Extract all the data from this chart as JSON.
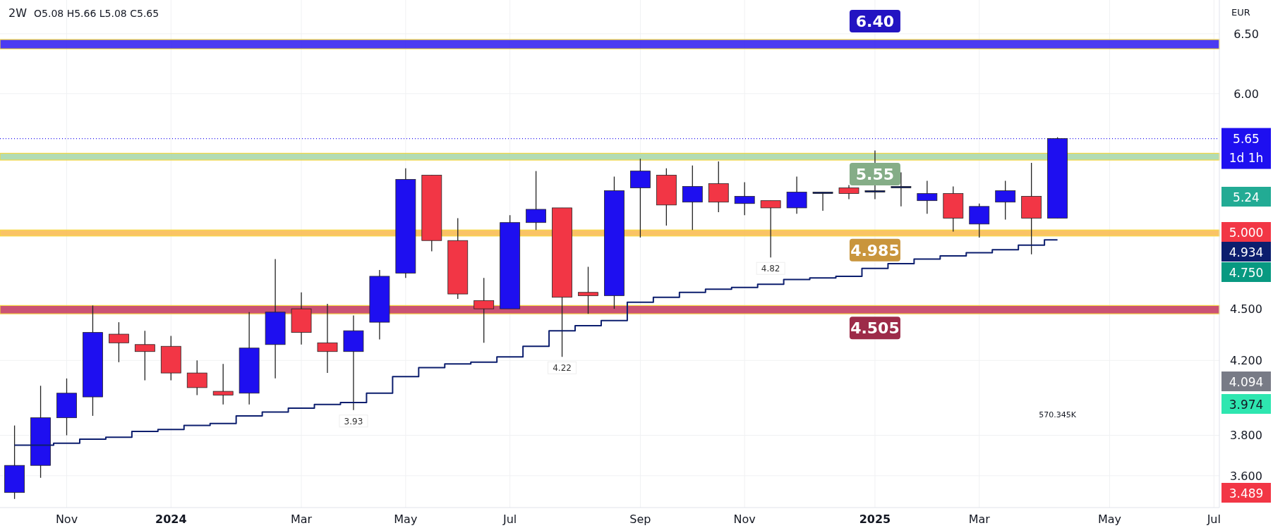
{
  "chart_data": {
    "type": "candlestick",
    "title": "2W",
    "categories": [
      null,
      null,
      "Nov",
      null,
      null,
      null,
      "2024",
      null,
      null,
      null,
      null,
      "Mar",
      null,
      null,
      null,
      "May",
      null,
      null,
      null,
      "Jul",
      null,
      null,
      null,
      null,
      "Sep",
      null,
      null,
      null,
      "Nov",
      null,
      null,
      null,
      null,
      "2025",
      null,
      null,
      null,
      "Mar",
      null,
      null,
      null,
      null,
      "May",
      null,
      null,
      null,
      "Jul"
    ],
    "ohlc": [
      [
        3.52,
        3.85,
        3.49,
        3.65
      ],
      [
        3.65,
        4.06,
        3.59,
        3.89
      ],
      [
        3.89,
        4.1,
        3.8,
        4.02
      ],
      [
        4.0,
        4.52,
        3.9,
        4.36
      ],
      [
        4.35,
        4.42,
        4.19,
        4.3
      ],
      [
        4.29,
        4.37,
        4.09,
        4.25
      ],
      [
        4.28,
        4.34,
        4.09,
        4.13
      ],
      [
        4.13,
        4.2,
        4.01,
        4.05
      ],
      [
        4.03,
        4.18,
        3.96,
        4.01
      ],
      [
        4.02,
        4.48,
        3.96,
        4.27
      ],
      [
        4.29,
        4.81,
        4.1,
        4.48
      ],
      [
        4.5,
        4.6,
        4.29,
        4.36
      ],
      [
        4.3,
        4.53,
        4.13,
        4.25
      ],
      [
        4.25,
        4.46,
        3.93,
        4.37
      ],
      [
        4.42,
        4.74,
        4.32,
        4.7
      ],
      [
        4.72,
        5.43,
        4.69,
        5.35
      ],
      [
        5.38,
        5.38,
        4.86,
        4.93
      ],
      [
        4.93,
        5.08,
        4.56,
        4.59
      ],
      [
        4.55,
        4.69,
        4.3,
        4.5
      ],
      [
        4.5,
        5.1,
        4.5,
        5.05
      ],
      [
        5.05,
        5.41,
        5.0,
        5.14
      ],
      [
        5.15,
        5.15,
        4.22,
        4.57
      ],
      [
        4.6,
        4.76,
        4.47,
        4.58
      ],
      [
        4.58,
        5.37,
        4.5,
        5.27
      ],
      [
        5.29,
        5.5,
        4.95,
        5.41
      ],
      [
        5.38,
        5.43,
        5.03,
        5.17
      ],
      [
        5.19,
        5.45,
        5.0,
        5.3
      ],
      [
        5.32,
        5.48,
        5.12,
        5.19
      ],
      [
        5.18,
        5.33,
        5.1,
        5.23
      ],
      [
        5.2,
        5.2,
        4.82,
        5.15
      ],
      [
        5.15,
        5.37,
        5.11,
        5.26
      ],
      [
        5.26,
        5.26,
        5.13,
        5.26
      ],
      [
        5.29,
        5.31,
        5.21,
        5.25
      ],
      [
        5.27,
        5.56,
        5.21,
        5.27
      ],
      [
        5.3,
        5.4,
        5.16,
        5.3
      ],
      [
        5.2,
        5.34,
        5.11,
        5.25
      ],
      [
        5.25,
        5.3,
        4.99,
        5.08
      ],
      [
        5.04,
        5.18,
        4.95,
        5.16
      ],
      [
        5.19,
        5.34,
        5.07,
        5.27
      ],
      [
        5.23,
        5.47,
        4.84,
        5.08
      ],
      [
        5.08,
        5.66,
        5.08,
        5.65
      ],
      null,
      null,
      null,
      null,
      null,
      null
    ],
    "colors": [
      "#1e0ff0",
      "#1e0ff0",
      "#1e0ff0",
      "#1e0ff0",
      "#f23645",
      "#f23645",
      "#f23645",
      "#f23645",
      "#f23645",
      "#1e0ff0",
      "#1e0ff0",
      "#f23645",
      "#f23645",
      "#1e0ff0",
      "#1e0ff0",
      "#1e0ff0",
      "#f23645",
      "#f23645",
      "#f23645",
      "#1e0ff0",
      "#1e0ff0",
      "#f23645",
      "#f23645",
      "#1e0ff0",
      "#1e0ff0",
      "#f23645",
      "#1e0ff0",
      "#f23645",
      "#1e0ff0",
      "#f23645",
      "#1e0ff0",
      "#0c1e6e",
      "#f23645",
      "#0c1e6e",
      "#0c1e6e",
      "#1e0ff0",
      "#f23645",
      "#1e0ff0",
      "#1e0ff0",
      "#f23645",
      "#1e0ff0",
      null,
      null,
      null,
      null,
      null,
      null
    ],
    "series": [
      {
        "type": "step",
        "color": "#0c1e6e",
        "values": [
          3.75,
          3.75,
          3.76,
          3.78,
          3.79,
          3.82,
          3.83,
          3.85,
          3.86,
          3.9,
          3.92,
          3.94,
          3.96,
          3.97,
          4.02,
          4.11,
          4.16,
          4.18,
          4.19,
          4.22,
          4.28,
          4.37,
          4.4,
          4.43,
          4.54,
          4.57,
          4.6,
          4.62,
          4.63,
          4.65,
          4.68,
          4.69,
          4.7,
          4.75,
          4.78,
          4.81,
          4.83,
          4.85,
          4.87,
          4.9,
          4.934,
          null,
          null,
          null,
          null,
          null,
          null
        ]
      }
    ],
    "ylim": [
      3.45,
      6.8
    ],
    "yticks": [
      {
        "value": 3.6,
        "label": "3.600"
      },
      {
        "value": 3.8,
        "label": "3.800"
      },
      {
        "value": 4.2,
        "label": "4.200"
      },
      {
        "value": 4.5,
        "label": "4.500"
      },
      {
        "value": 6,
        "label": "6.00"
      },
      {
        "value": 6.5,
        "label": "6.50"
      }
    ],
    "log": "y",
    "grid": true,
    "line_style": "solid",
    "marker": "none",
    "bands": [
      {
        "axis": "y",
        "from": 6.37,
        "to": 6.45,
        "label": "6.40",
        "color": "#2b19f0"
      },
      {
        "axis": "y",
        "from": 5.49,
        "to": 5.54,
        "label": "5.55",
        "color": "#a5d6a7"
      },
      {
        "axis": "y",
        "from": 4.96,
        "to": 5.0,
        "label": "4.985",
        "color": "#f9b84a"
      },
      {
        "axis": "y",
        "from": 4.47,
        "to": 4.52,
        "label": "4.505",
        "color": "#c2355a"
      }
    ],
    "ref_lines": [
      {
        "axis": "y",
        "value": 5.65,
        "label": "5.65",
        "color": "#1e0ff0",
        "line_style": "dotted"
      }
    ],
    "annotations": [
      "O5.08 H5.66 L5.08 C5.65",
      "EUR",
      "1d 1h",
      "570.345K",
      {
        "text": "3.93",
        "y": 3.93
      },
      {
        "text": "4.22",
        "y": 4.22
      },
      {
        "text": "4.82",
        "y": 4.82
      },
      "5.24",
      "5.000",
      "4.934",
      "4.750",
      "4.094",
      "3.974",
      "3.489"
    ]
  }
}
